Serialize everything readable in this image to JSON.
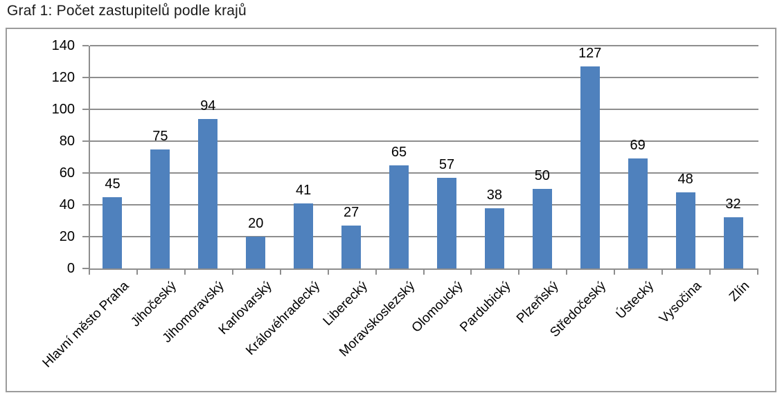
{
  "page_title": "Graf 1: Počet zastupitelů podle krajů",
  "colors": {
    "bar": "#4f81bd",
    "gridline": "#8e8e8e",
    "axis": "#8e8e8e",
    "chart_border": "#9c9c9c",
    "text": "#000000"
  },
  "chart_data": {
    "type": "bar",
    "title": "Graf 1: Počet zastupitelů podle krajů",
    "categories": [
      "Hlavní město Praha",
      "Jihočeský",
      "Jihomoravský",
      "Karlovarský",
      "Královéhradecký",
      "Liberecký",
      "Moravskoslezský",
      "Olomoucký",
      "Pardubický",
      "Plzeňský",
      "Středočeský",
      "Ústecký",
      "Vysočina",
      "Zlín"
    ],
    "values": [
      45,
      75,
      94,
      20,
      41,
      27,
      65,
      57,
      38,
      50,
      127,
      69,
      48,
      32
    ],
    "xlabel": "",
    "ylabel": "",
    "ylim": [
      0,
      140
    ],
    "yticks": [
      0,
      20,
      40,
      60,
      80,
      100,
      120,
      140
    ],
    "grid": true,
    "data_labels": true,
    "legend": "none",
    "x_label_rotation_deg": 45
  }
}
